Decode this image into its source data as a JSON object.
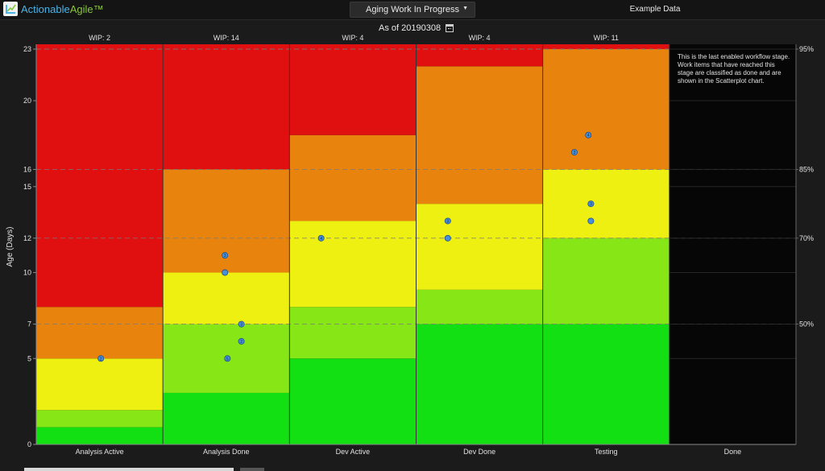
{
  "header": {
    "logo_part1": "Actionable",
    "logo_part2": "Agile™",
    "view_label": "Aging Work In Progress",
    "dataset_label": "Example Data"
  },
  "as_of_label": "As of 20190308",
  "done_note": "This is the last enabled workflow stage. Work items that have reached this stage are classified as done and are shown in the Scatterplot chart.",
  "colors": {
    "red": "#e01010",
    "orange": "#e8830e",
    "yellow": "#eef012",
    "light_green": "#86e616",
    "green": "#12e012",
    "dot": "#4a90d9",
    "done_bg": "#060606"
  },
  "chart_data": {
    "type": "scatter",
    "ylabel": "Age (Days)",
    "ylim": [
      0,
      23
    ],
    "y_ticks": [
      0,
      5,
      7,
      10,
      12,
      15,
      16,
      20,
      23
    ],
    "percentile_lines": [
      {
        "label": "50%",
        "value": 7
      },
      {
        "label": "70%",
        "value": 12
      },
      {
        "label": "85%",
        "value": 16
      },
      {
        "label": "95%",
        "value": 23
      }
    ],
    "columns": [
      {
        "name": "Analysis Active",
        "wip": "WIP: 2",
        "bands": [
          {
            "from": 0,
            "to": 1,
            "color": "green"
          },
          {
            "from": 1,
            "to": 2,
            "color": "light_green"
          },
          {
            "from": 2,
            "to": 5,
            "color": "yellow"
          },
          {
            "from": 5,
            "to": 8,
            "color": "orange"
          },
          {
            "from": 8,
            "to": 23.3,
            "color": "red"
          }
        ],
        "points": [
          {
            "age": 5,
            "count": 2
          }
        ]
      },
      {
        "name": "Analysis Done",
        "wip": "WIP: 14",
        "bands": [
          {
            "from": 0,
            "to": 3,
            "color": "green"
          },
          {
            "from": 3,
            "to": 7,
            "color": "light_green"
          },
          {
            "from": 7,
            "to": 10,
            "color": "yellow"
          },
          {
            "from": 10,
            "to": 16,
            "color": "orange"
          },
          {
            "from": 16,
            "to": 23.3,
            "color": "red"
          }
        ],
        "points": [
          {
            "age": 5,
            "count": 5
          },
          {
            "age": 6,
            "count": 2
          },
          {
            "age": 7,
            "count": 3
          },
          {
            "age": 10,
            "count": 1
          },
          {
            "age": 11,
            "count": 3
          }
        ]
      },
      {
        "name": "Dev Active",
        "wip": "WIP: 4",
        "bands": [
          {
            "from": 0,
            "to": 5,
            "color": "green"
          },
          {
            "from": 5,
            "to": 8,
            "color": "light_green"
          },
          {
            "from": 8,
            "to": 13,
            "color": "yellow"
          },
          {
            "from": 13,
            "to": 18,
            "color": "orange"
          },
          {
            "from": 18,
            "to": 23.3,
            "color": "red"
          }
        ],
        "points": [
          {
            "age": 12,
            "count": 4
          }
        ]
      },
      {
        "name": "Dev Done",
        "wip": "WIP: 4",
        "bands": [
          {
            "from": 0,
            "to": 7,
            "color": "green"
          },
          {
            "from": 7,
            "to": 9,
            "color": "light_green"
          },
          {
            "from": 9,
            "to": 14,
            "color": "yellow"
          },
          {
            "from": 14,
            "to": 22,
            "color": "orange"
          },
          {
            "from": 22,
            "to": 23.3,
            "color": "red"
          }
        ],
        "points": [
          {
            "age": 12,
            "count": 1
          },
          {
            "age": 13,
            "count": 3
          }
        ]
      },
      {
        "name": "Testing",
        "wip": "WIP: 11",
        "bands": [
          {
            "from": 0,
            "to": 7,
            "color": "green"
          },
          {
            "from": 7,
            "to": 12,
            "color": "light_green"
          },
          {
            "from": 12,
            "to": 16,
            "color": "yellow"
          },
          {
            "from": 16,
            "to": 23,
            "color": "orange"
          },
          {
            "from": 23,
            "to": 23.3,
            "color": "red"
          }
        ],
        "points": [
          {
            "age": 13,
            "count": 1
          },
          {
            "age": 14,
            "count": 3
          },
          {
            "age": 17,
            "count": 3
          },
          {
            "age": 18,
            "count": 4
          }
        ]
      },
      {
        "name": "Done",
        "wip": "",
        "bands": [],
        "points": []
      }
    ]
  }
}
